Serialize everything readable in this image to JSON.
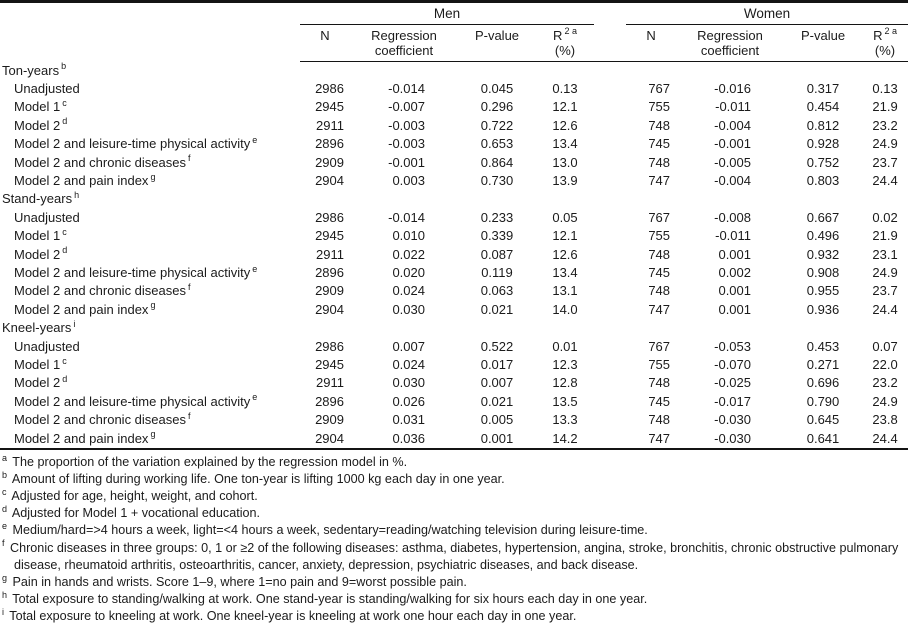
{
  "table": {
    "col_groups": [
      {
        "label": "Men"
      },
      {
        "label": "Women"
      }
    ],
    "columns": {
      "n": "N",
      "coef_line1": "Regression",
      "coef_line2": "coefficient",
      "pvalue": "P-value",
      "r2_letter": "R",
      "r2_sup": "2 a",
      "r2_unit": "(%)"
    },
    "groups": [
      {
        "label": "Ton-years",
        "sup": "b",
        "rows": [
          {
            "label": "Unadjusted",
            "sup": "",
            "men": {
              "n": "2986",
              "coef": "-0.014",
              "p": "0.045",
              "r2": "0.13"
            },
            "women": {
              "n": "767",
              "coef": "-0.016",
              "p": "0.317",
              "r2": "0.13"
            }
          },
          {
            "label": "Model 1",
            "sup": "c",
            "men": {
              "n": "2945",
              "coef": "-0.007",
              "p": "0.296",
              "r2": "12.1"
            },
            "women": {
              "n": "755",
              "coef": "-0.011",
              "p": "0.454",
              "r2": "21.9"
            }
          },
          {
            "label": "Model 2",
            "sup": "d",
            "men": {
              "n": "2911",
              "coef": "-0.003",
              "p": "0.722",
              "r2": "12.6"
            },
            "women": {
              "n": "748",
              "coef": "-0.004",
              "p": "0.812",
              "r2": "23.2"
            }
          },
          {
            "label": "Model 2 and leisure-time physical activity",
            "sup": "e",
            "men": {
              "n": "2896",
              "coef": "-0.003",
              "p": "0.653",
              "r2": "13.4"
            },
            "women": {
              "n": "745",
              "coef": "-0.001",
              "p": "0.928",
              "r2": "24.9"
            }
          },
          {
            "label": "Model 2 and chronic diseases",
            "sup": "f",
            "men": {
              "n": "2909",
              "coef": "-0.001",
              "p": "0.864",
              "r2": "13.0"
            },
            "women": {
              "n": "748",
              "coef": "-0.005",
              "p": "0.752",
              "r2": "23.7"
            }
          },
          {
            "label": "Model 2 and pain index",
            "sup": "g",
            "men": {
              "n": "2904",
              "coef": "0.003",
              "p": "0.730",
              "r2": "13.9"
            },
            "women": {
              "n": "747",
              "coef": "-0.004",
              "p": "0.803",
              "r2": "24.4"
            }
          }
        ]
      },
      {
        "label": "Stand-years",
        "sup": "h",
        "rows": [
          {
            "label": "Unadjusted",
            "sup": "",
            "men": {
              "n": "2986",
              "coef": "-0.014",
              "p": "0.233",
              "r2": "0.05"
            },
            "women": {
              "n": "767",
              "coef": "-0.008",
              "p": "0.667",
              "r2": "0.02"
            }
          },
          {
            "label": "Model 1",
            "sup": "c",
            "men": {
              "n": "2945",
              "coef": "0.010",
              "p": "0.339",
              "r2": "12.1"
            },
            "women": {
              "n": "755",
              "coef": "-0.011",
              "p": "0.496",
              "r2": "21.9"
            }
          },
          {
            "label": "Model 2",
            "sup": "d",
            "men": {
              "n": "2911",
              "coef": "0.022",
              "p": "0.087",
              "r2": "12.6"
            },
            "women": {
              "n": "748",
              "coef": "0.001",
              "p": "0.932",
              "r2": "23.1"
            }
          },
          {
            "label": "Model 2 and leisure-time physical activity",
            "sup": "e",
            "men": {
              "n": "2896",
              "coef": "0.020",
              "p": "0.119",
              "r2": "13.4"
            },
            "women": {
              "n": "745",
              "coef": "0.002",
              "p": "0.908",
              "r2": "24.9"
            }
          },
          {
            "label": "Model 2 and chronic diseases",
            "sup": "f",
            "men": {
              "n": "2909",
              "coef": "0.024",
              "p": "0.063",
              "r2": "13.1"
            },
            "women": {
              "n": "748",
              "coef": "0.001",
              "p": "0.955",
              "r2": "23.7"
            }
          },
          {
            "label": "Model 2 and pain index",
            "sup": "g",
            "men": {
              "n": "2904",
              "coef": "0.030",
              "p": "0.021",
              "r2": "14.0"
            },
            "women": {
              "n": "747",
              "coef": "0.001",
              "p": "0.936",
              "r2": "24.4"
            }
          }
        ]
      },
      {
        "label": "Kneel-years",
        "sup": "i",
        "rows": [
          {
            "label": "Unadjusted",
            "sup": "",
            "men": {
              "n": "2986",
              "coef": "0.007",
              "p": "0.522",
              "r2": "0.01"
            },
            "women": {
              "n": "767",
              "coef": "-0.053",
              "p": "0.453",
              "r2": "0.07"
            }
          },
          {
            "label": "Model 1",
            "sup": "c",
            "men": {
              "n": "2945",
              "coef": "0.024",
              "p": "0.017",
              "r2": "12.3"
            },
            "women": {
              "n": "755",
              "coef": "-0.070",
              "p": "0.271",
              "r2": "22.0"
            }
          },
          {
            "label": "Model 2",
            "sup": "d",
            "men": {
              "n": "2911",
              "coef": "0.030",
              "p": "0.007",
              "r2": "12.8"
            },
            "women": {
              "n": "748",
              "coef": "-0.025",
              "p": "0.696",
              "r2": "23.2"
            }
          },
          {
            "label": "Model 2 and leisure-time physical activity",
            "sup": "e",
            "men": {
              "n": "2896",
              "coef": "0.026",
              "p": "0.021",
              "r2": "13.5"
            },
            "women": {
              "n": "745",
              "coef": "-0.017",
              "p": "0.790",
              "r2": "24.9"
            }
          },
          {
            "label": "Model 2 and chronic diseases",
            "sup": "f",
            "men": {
              "n": "2909",
              "coef": "0.031",
              "p": "0.005",
              "r2": "13.3"
            },
            "women": {
              "n": "748",
              "coef": "-0.030",
              "p": "0.645",
              "r2": "23.8"
            }
          },
          {
            "label": "Model 2 and pain index",
            "sup": "g",
            "men": {
              "n": "2904",
              "coef": "0.036",
              "p": "0.001",
              "r2": "14.2"
            },
            "women": {
              "n": "747",
              "coef": "-0.030",
              "p": "0.641",
              "r2": "24.4"
            }
          }
        ]
      }
    ]
  },
  "footnotes": [
    {
      "sup": "a",
      "text": "The proportion of the variation explained by the regression model in %."
    },
    {
      "sup": "b",
      "text": "Amount of lifting during working life. One ton-year is lifting 1000 kg each day in one year."
    },
    {
      "sup": "c",
      "text": "Adjusted for age, height, weight, and cohort."
    },
    {
      "sup": "d",
      "text": "Adjusted for Model 1 + vocational education."
    },
    {
      "sup": "e",
      "text": "Medium/hard=>4 hours a week, light=<4 hours a week, sedentary=reading/watching television during leisure-time."
    },
    {
      "sup": "f",
      "text": "Chronic diseases in three groups: 0, 1 or ≥2 of the following diseases: asthma, diabetes, hypertension, angina, stroke, bronchitis, chronic obstructive pulmonary disease, rheumatoid arthritis, osteoarthritis, cancer, anxiety, depression, psychiatric diseases, and back disease."
    },
    {
      "sup": "g",
      "text": "Pain in hands and wrists. Score 1–9, where 1=no pain and 9=worst possible pain."
    },
    {
      "sup": "h",
      "text": "Total exposure to standing/walking at work. One stand-year is standing/walking for six hours each day in one year."
    },
    {
      "sup": "i",
      "text": "Total exposure to kneeling at work. One kneel-year is kneeling at work one hour each day in one year."
    }
  ]
}
